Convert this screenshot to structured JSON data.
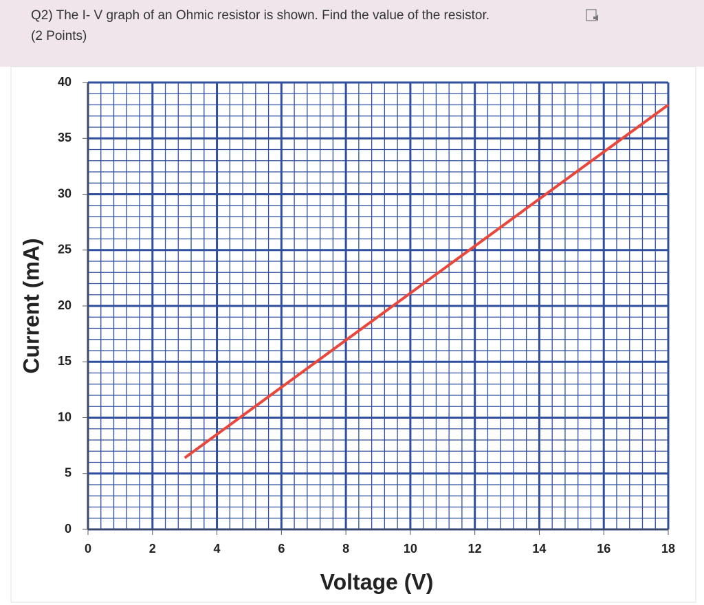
{
  "question": {
    "title": "Q2) The I- V graph of an Ohmic resistor is shown. Find the value of the resistor.",
    "points": "(2 Points)"
  },
  "chart_data": {
    "type": "line",
    "x_label": "Voltage (V)",
    "y_label": "Current (mA)",
    "x": [
      3,
      18
    ],
    "values": [
      6.4,
      38
    ],
    "color": "#e8473b",
    "xlim": [
      0,
      18
    ],
    "xticks": [
      0,
      2,
      4,
      6,
      8,
      10,
      12,
      14,
      16,
      18
    ],
    "ylim": [
      0,
      40
    ],
    "yticks": [
      0,
      5,
      10,
      15,
      20,
      25,
      30,
      35,
      40
    ],
    "grid": true
  }
}
